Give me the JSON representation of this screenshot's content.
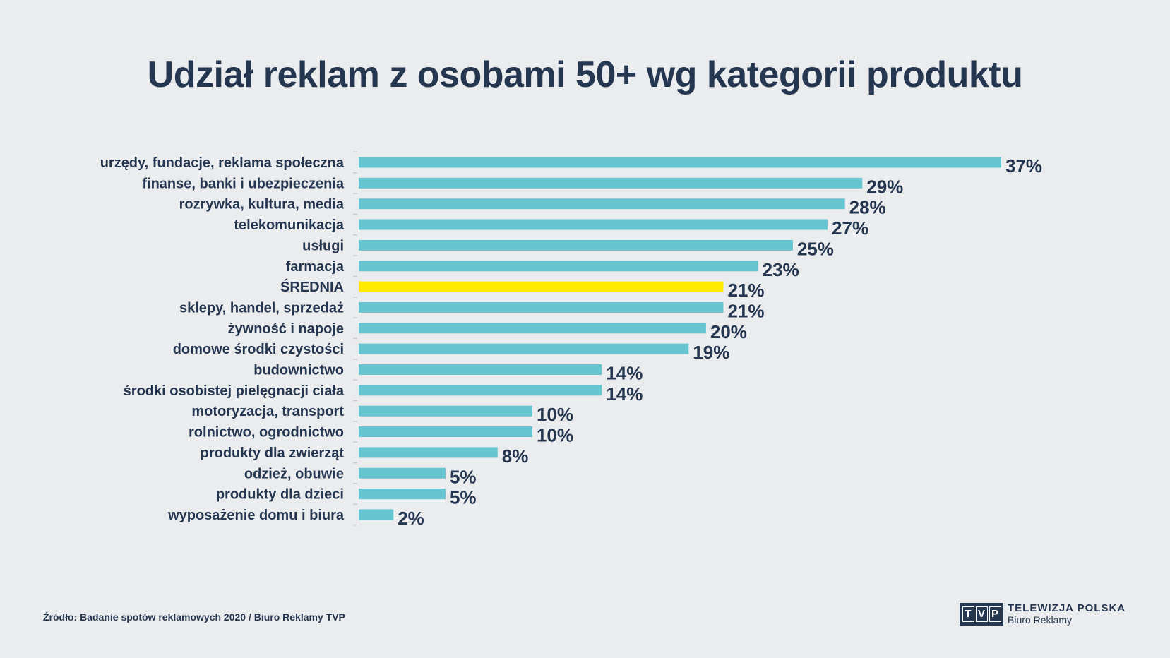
{
  "chart_data": {
    "type": "bar",
    "orientation": "horizontal",
    "title": "Udział reklam z osobami 50+ wg kategorii produktu",
    "categories": [
      "urzędy, fundacje, reklama społeczna",
      "finanse, banki i ubezpieczenia",
      "rozrywka, kultura, media",
      "telekomunikacja",
      "usługi",
      "farmacja",
      "ŚREDNIA",
      "sklepy, handel, sprzedaż",
      "żywność i napoje",
      "domowe środki czystości",
      "budownictwo",
      "środki osobistej pielęgnacji ciała",
      "motoryzacja, transport",
      "rolnictwo, ogrodnictwo",
      "produkty dla zwierząt",
      "odzież, obuwie",
      "produkty dla dzieci",
      "wyposażenie domu i biura"
    ],
    "values": [
      37,
      29,
      28,
      27,
      25,
      23,
      21,
      21,
      20,
      19,
      14,
      14,
      10,
      10,
      8,
      5,
      5,
      2
    ],
    "value_labels": [
      "37%",
      "29%",
      "28%",
      "27%",
      "25%",
      "23%",
      "21%",
      "21%",
      "20%",
      "19%",
      "14%",
      "14%",
      "10%",
      "10%",
      "8%",
      "5%",
      "5%",
      "2%"
    ],
    "xlim": [
      0,
      37
    ],
    "grid": false,
    "colors": {
      "bar": "#67c4d1",
      "highlight": "#ffea00",
      "text": "#253651",
      "background": "#ebeced"
    },
    "highlight_category": "ŚREDNIA"
  },
  "footer": {
    "source": "Źródło: Badanie spotów reklamowych 2020 / Biuro Reklamy TVP",
    "logo": {
      "letters": [
        "T",
        "V",
        "P"
      ],
      "line1": "TELEWIZJA POLSKA",
      "line2": "Biuro Reklamy"
    }
  }
}
